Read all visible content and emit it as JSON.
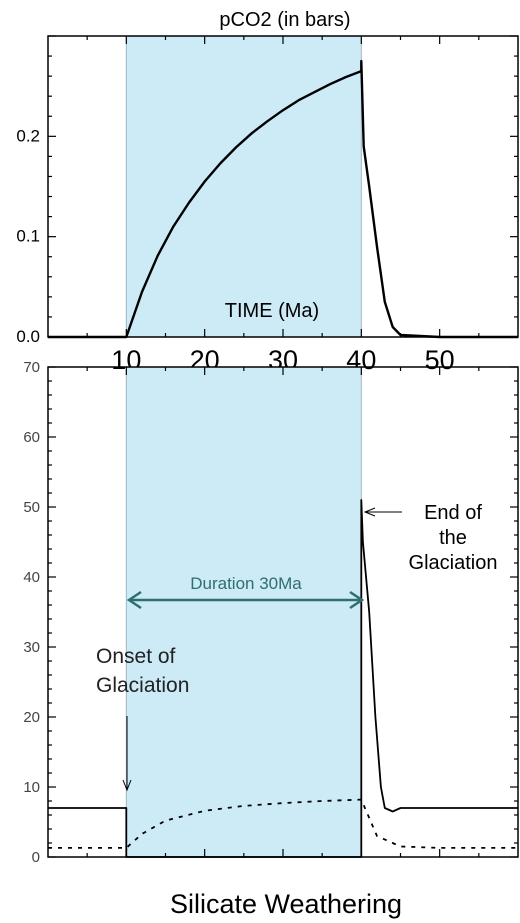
{
  "chart_data": [
    {
      "type": "line",
      "title": "pCO2 (in bars)",
      "xlabel": "TIME (Ma)",
      "ylabel": "",
      "xlim": [
        0,
        60
      ],
      "ylim": [
        0,
        0.3
      ],
      "x_ticks": [
        "10",
        "20",
        "30",
        "40",
        "50"
      ],
      "y_ticks": [
        "0.0",
        "0.1",
        "0.2"
      ],
      "shaded_interval": [
        10,
        40
      ],
      "shade_color": "#cdeaf7",
      "series": [
        {
          "line_style": "solid",
          "x": [
            0,
            10,
            12,
            14,
            16,
            18,
            20,
            22,
            24,
            26,
            28,
            30,
            32,
            34,
            36,
            38,
            40,
            40,
            40.3,
            41,
            42,
            43,
            44,
            45,
            50,
            60
          ],
          "y": [
            0,
            0,
            0.045,
            0.081,
            0.11,
            0.134,
            0.155,
            0.173,
            0.189,
            0.203,
            0.215,
            0.226,
            0.236,
            0.244,
            0.252,
            0.259,
            0.265,
            0.275,
            0.19,
            0.15,
            0.09,
            0.035,
            0.01,
            0.002,
            0,
            0
          ]
        }
      ]
    },
    {
      "type": "line",
      "title": "Silicate Weathering",
      "xlabel": "",
      "ylabel": "",
      "xlim": [
        0,
        60
      ],
      "ylim": [
        0,
        70
      ],
      "y_ticks": [
        "0",
        "10",
        "20",
        "30",
        "40",
        "50",
        "60",
        "70"
      ],
      "shaded_interval": [
        10,
        40
      ],
      "shade_color": "#cdeaf7",
      "series": [
        {
          "line_style": "solid",
          "x": [
            0,
            10,
            10,
            40,
            40,
            40.2,
            41,
            41.8,
            42.5,
            43,
            44,
            45,
            48,
            60
          ],
          "y": [
            7,
            7,
            0,
            0,
            51,
            45,
            35,
            20,
            10,
            7,
            6.5,
            7,
            7,
            7
          ]
        },
        {
          "line_style": "dashed",
          "x": [
            0,
            10,
            12,
            15,
            20,
            25,
            30,
            35,
            40,
            42,
            45,
            50,
            60
          ],
          "y": [
            1.3,
            1.3,
            3.3,
            5.2,
            6.6,
            7.3,
            7.7,
            8,
            8.2,
            3,
            1.5,
            1.3,
            1.3
          ]
        }
      ],
      "annotations": {
        "onset": "Onset of Glaciation",
        "duration": "Duration 30Ma",
        "end": [
          "End of",
          "the",
          "Glaciation"
        ]
      }
    }
  ]
}
